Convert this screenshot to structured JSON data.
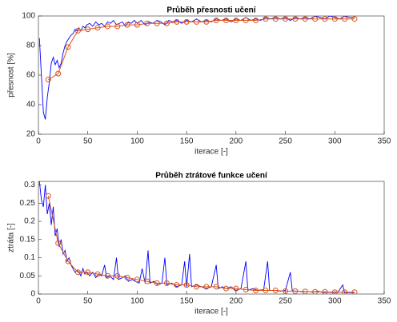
{
  "chart_data": [
    {
      "type": "line",
      "title": "Průběh přesnosti učení",
      "xlabel": "iterace [-]",
      "ylabel": "přesnost [%]",
      "xlim": [
        0,
        350
      ],
      "xticks": [
        0,
        50,
        100,
        150,
        200,
        250,
        300,
        350
      ],
      "ylim": [
        20,
        100
      ],
      "yticks": [
        20,
        40,
        60,
        80,
        100
      ],
      "series": [
        {
          "color": "#0000ff",
          "marker": "none",
          "x": [
            1,
            3,
            5,
            7,
            9,
            11,
            13,
            15,
            17,
            19,
            21,
            23,
            25,
            27,
            29,
            31,
            33,
            35,
            37,
            39,
            41,
            43,
            45,
            47,
            49,
            52,
            55,
            58,
            61,
            64,
            67,
            70,
            73,
            76,
            79,
            82,
            85,
            88,
            91,
            94,
            97,
            100,
            104,
            108,
            112,
            116,
            120,
            124,
            128,
            132,
            136,
            140,
            145,
            150,
            155,
            160,
            165,
            170,
            175,
            180,
            185,
            190,
            195,
            200,
            205,
            210,
            215,
            220,
            225,
            230,
            235,
            240,
            245,
            250,
            255,
            260,
            265,
            270,
            275,
            280,
            285,
            290,
            295,
            300,
            305,
            310,
            315,
            320
          ],
          "values": [
            85,
            60,
            35,
            30,
            45,
            55,
            68,
            72,
            67,
            70,
            65,
            68,
            75,
            80,
            83,
            85,
            87,
            88,
            91,
            90,
            92,
            90,
            93,
            92,
            94,
            95,
            93,
            96,
            94,
            95,
            93,
            96,
            95,
            97,
            94,
            95,
            96,
            93,
            96,
            95,
            97,
            95,
            97,
            94,
            96,
            95,
            97,
            96,
            94,
            97,
            96,
            97,
            95,
            97,
            96,
            98,
            96,
            97,
            96,
            98,
            97,
            98,
            96,
            98,
            97,
            99,
            97,
            98,
            97,
            99,
            98,
            99,
            98,
            99,
            97,
            99,
            98,
            99,
            98,
            100,
            99,
            98,
            100,
            99,
            98,
            100,
            99,
            99
          ]
        },
        {
          "color": "#d95319",
          "marker": "circle",
          "x": [
            10,
            20,
            30,
            40,
            50,
            60,
            70,
            80,
            90,
            100,
            110,
            120,
            130,
            140,
            150,
            160,
            170,
            180,
            190,
            200,
            210,
            220,
            230,
            240,
            250,
            260,
            270,
            280,
            290,
            300,
            310,
            320
          ],
          "values": [
            57,
            61,
            79,
            90,
            91,
            92,
            93,
            93,
            94,
            94,
            95,
            95,
            95,
            96,
            96,
            96,
            96,
            97,
            97,
            97,
            97,
            97,
            98,
            98,
            98,
            98,
            98,
            98,
            98,
            98,
            98,
            98
          ]
        }
      ]
    },
    {
      "type": "line",
      "title": "Průběh ztrátové funkce učení",
      "xlabel": "iterace [-]",
      "ylabel": "ztráta [-]",
      "xlim": [
        0,
        350
      ],
      "xticks": [
        0,
        50,
        100,
        150,
        200,
        250,
        300,
        350
      ],
      "ylim": [
        0,
        0.31
      ],
      "yticks": [
        0,
        0.05,
        0.1,
        0.15,
        0.2,
        0.25,
        0.3
      ],
      "series": [
        {
          "color": "#0000ff",
          "marker": "none",
          "x": [
            1,
            3,
            5,
            7,
            9,
            11,
            13,
            15,
            17,
            19,
            21,
            23,
            25,
            27,
            29,
            31,
            33,
            35,
            37,
            39,
            41,
            43,
            45,
            47,
            49,
            52,
            55,
            58,
            61,
            64,
            67,
            69,
            72,
            76,
            79,
            81,
            85,
            88,
            91,
            95,
            98,
            102,
            105,
            108,
            111,
            113,
            117,
            121,
            125,
            128,
            130,
            135,
            140,
            145,
            148,
            150,
            153,
            155,
            160,
            165,
            170,
            175,
            180,
            182,
            186,
            190,
            195,
            200,
            205,
            210,
            212,
            217,
            222,
            228,
            232,
            234,
            240,
            245,
            250,
            255,
            257,
            262,
            268,
            273,
            278,
            283,
            288,
            293,
            298,
            303,
            308,
            310,
            315,
            320
          ],
          "values": [
            0.31,
            0.26,
            0.24,
            0.3,
            0.22,
            0.25,
            0.19,
            0.24,
            0.16,
            0.18,
            0.13,
            0.15,
            0.11,
            0.12,
            0.09,
            0.1,
            0.08,
            0.07,
            0.06,
            0.065,
            0.06,
            0.05,
            0.07,
            0.055,
            0.06,
            0.05,
            0.06,
            0.045,
            0.055,
            0.05,
            0.08,
            0.045,
            0.05,
            0.04,
            0.1,
            0.04,
            0.045,
            0.05,
            0.035,
            0.04,
            0.035,
            0.03,
            0.07,
            0.03,
            0.12,
            0.03,
            0.035,
            0.025,
            0.03,
            0.1,
            0.025,
            0.03,
            0.02,
            0.025,
            0.09,
            0.02,
            0.11,
            0.02,
            0.025,
            0.02,
            0.015,
            0.02,
            0.08,
            0.015,
            0.02,
            0.015,
            0.02,
            0.01,
            0.015,
            0.09,
            0.01,
            0.015,
            0.01,
            0.012,
            0.09,
            0.01,
            0.01,
            0.008,
            0.01,
            0.06,
            0.008,
            0.008,
            0.006,
            0.007,
            0.005,
            0.008,
            0.004,
            0.005,
            0.004,
            0.004,
            0.025,
            0.003,
            0.004,
            0.003
          ]
        },
        {
          "color": "#d95319",
          "marker": "circle",
          "x": [
            10,
            20,
            30,
            40,
            50,
            60,
            70,
            80,
            90,
            100,
            110,
            120,
            130,
            140,
            150,
            160,
            170,
            180,
            190,
            200,
            210,
            220,
            230,
            240,
            250,
            260,
            270,
            280,
            290,
            300,
            310,
            320
          ],
          "values": [
            0.27,
            0.14,
            0.09,
            0.06,
            0.06,
            0.055,
            0.05,
            0.05,
            0.045,
            0.04,
            0.035,
            0.03,
            0.03,
            0.025,
            0.025,
            0.02,
            0.02,
            0.02,
            0.015,
            0.015,
            0.012,
            0.01,
            0.01,
            0.01,
            0.008,
            0.008,
            0.007,
            0.006,
            0.006,
            0.005,
            0.005,
            0.005
          ]
        }
      ]
    }
  ]
}
